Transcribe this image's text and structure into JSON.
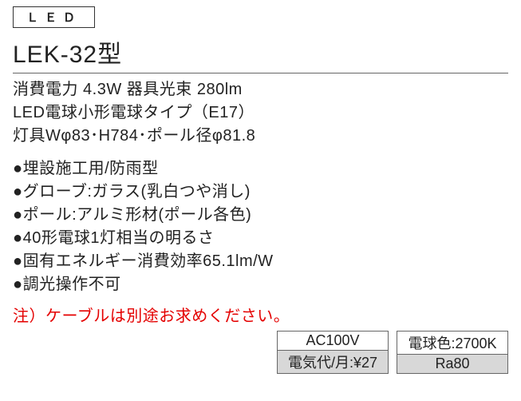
{
  "badge": "ＬＥＤ",
  "model": "LEK-32型",
  "specs": {
    "line1": "消費電力 4.3W 器具光束 280lm",
    "line2": "LED電球小形電球タイプ（E17）",
    "line3": "灯具Wφ83･H784･ポール径φ81.8"
  },
  "bullets": [
    "●埋設施工用/防雨型",
    "●グローブ:ガラス(乳白つや消し)",
    "●ポール:アルミ形材(ポール各色)",
    "●40形電球1灯相当の明るさ",
    "●固有エネルギー消費効率65.1lm/W",
    "●調光操作不可"
  ],
  "note": "注）ケーブルは別途お求めください。",
  "info_boxes": {
    "left_top": "AC100V",
    "left_bottom": "電気代/月:¥27",
    "right_top": "電球色:2700K",
    "right_bottom": "Ra80"
  },
  "colors": {
    "text": "#222222",
    "note": "#e40000",
    "border": "#666666",
    "gray_bg": "#d8d8d8",
    "background": "#ffffff"
  },
  "typography": {
    "badge_fontsize": 15,
    "model_fontsize": 30,
    "spec_fontsize": 20,
    "bullet_fontsize": 20,
    "note_fontsize": 20,
    "info_fontsize": 18
  }
}
